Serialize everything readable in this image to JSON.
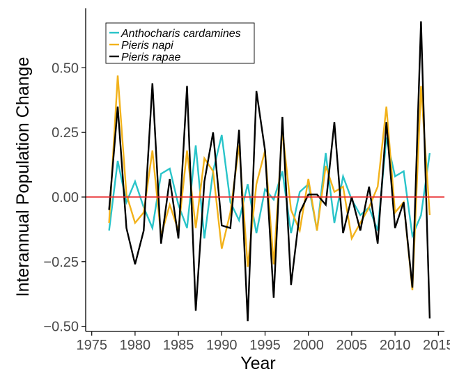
{
  "chart_data": {
    "type": "line",
    "title": "",
    "xlabel": "Year",
    "ylabel": "Interannual Population Change",
    "xlim": [
      1974.3,
      2015.7
    ],
    "ylim": [
      -0.52,
      0.73
    ],
    "x_ticks": [
      1975,
      1980,
      1985,
      1990,
      1995,
      2000,
      2005,
      2010,
      2015
    ],
    "x_tick_labels": [
      "1975",
      "1980",
      "1985",
      "1990",
      "1995",
      "2000",
      "2005",
      "2010",
      "2015"
    ],
    "y_ticks": [
      -0.5,
      -0.25,
      0,
      0.25,
      0.5
    ],
    "y_tick_labels": [
      "−0.50",
      "−0.25",
      "0.00",
      "0.25",
      "0.50"
    ],
    "grid": false,
    "legend_position": "top-left",
    "reference_line": {
      "y": 0,
      "color": "#e8292b"
    },
    "x": [
      1977,
      1978,
      1979,
      1980,
      1981,
      1982,
      1983,
      1984,
      1985,
      1986,
      1987,
      1988,
      1989,
      1990,
      1991,
      1992,
      1993,
      1994,
      1995,
      1996,
      1997,
      1998,
      1999,
      2000,
      2001,
      2002,
      2003,
      2004,
      2005,
      2006,
      2007,
      2008,
      2009,
      2010,
      2011,
      2012,
      2013,
      2014
    ],
    "series": [
      {
        "name": "Anthocharis cardamines",
        "color": "#29c4c9",
        "values": [
          -0.13,
          0.14,
          -0.02,
          0.06,
          -0.04,
          -0.12,
          0.09,
          0.11,
          -0.03,
          -0.12,
          0.2,
          -0.16,
          0.1,
          0.24,
          -0.02,
          -0.09,
          0.05,
          -0.14,
          0.03,
          -0.01,
          0.1,
          -0.14,
          0.02,
          0.05,
          -0.13,
          0.17,
          -0.1,
          0.08,
          -0.01,
          -0.07,
          -0.04,
          -0.13,
          0.23,
          0.08,
          0.1,
          -0.15,
          -0.07,
          0.17
        ]
      },
      {
        "name": "Pieris napi",
        "color": "#f2b21b",
        "values": [
          -0.1,
          0.47,
          0.01,
          -0.1,
          -0.06,
          0.18,
          -0.15,
          -0.03,
          -0.13,
          0.18,
          -0.12,
          0.15,
          0.1,
          -0.2,
          -0.06,
          0.2,
          -0.27,
          0.05,
          0.18,
          -0.26,
          0.26,
          -0.05,
          -0.13,
          0.07,
          -0.13,
          0.12,
          0.02,
          0.04,
          -0.16,
          -0.1,
          -0.04,
          0.04,
          0.35,
          -0.06,
          -0.02,
          -0.36,
          0.43,
          -0.07
        ]
      },
      {
        "name": "Pieris rapae",
        "color": "#000000",
        "values": [
          -0.05,
          0.35,
          -0.12,
          -0.26,
          -0.13,
          0.44,
          -0.18,
          0.07,
          -0.16,
          0.43,
          -0.44,
          0.06,
          0.25,
          -0.11,
          -0.12,
          0.26,
          -0.48,
          0.41,
          0.18,
          -0.39,
          0.31,
          -0.34,
          -0.06,
          0.01,
          0.01,
          -0.03,
          0.29,
          -0.14,
          0.0,
          -0.13,
          0.04,
          -0.18,
          0.29,
          -0.12,
          -0.02,
          -0.35,
          0.68,
          -0.47
        ]
      }
    ]
  }
}
